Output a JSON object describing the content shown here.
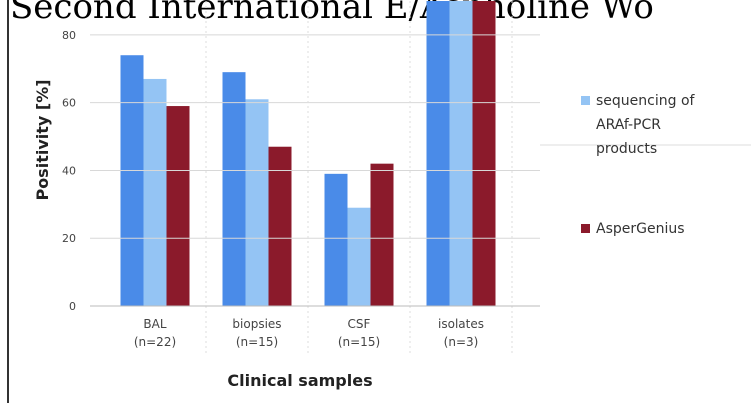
{
  "chart_data": {
    "type": "bar",
    "title": "Second International E/Aspholine Wo",
    "x_label": "Clinical samples",
    "y_label": "Positivity [%]",
    "categories": [
      [
        "BAL",
        "(n=22)"
      ],
      [
        "biopsies",
        "(n=15)"
      ],
      [
        "CSF",
        "(n=15)"
      ],
      [
        "isolates",
        "(n=3)"
      ]
    ],
    "series": [
      {
        "color": "#4a8be8",
        "values": [
          74,
          69,
          39,
          100
        ]
      },
      {
        "name": "sequencing of ARAf-PCR products",
        "color": "#94c4f4",
        "values": [
          67,
          61,
          29,
          100
        ]
      },
      {
        "name": "AsperGenius",
        "color": "#8b1a2b",
        "values": [
          59,
          47,
          42,
          100
        ]
      }
    ],
    "ylim": [
      0,
      90
    ],
    "yticks": [
      0,
      20,
      40,
      60,
      80
    ],
    "grid": true,
    "legend": "right"
  }
}
